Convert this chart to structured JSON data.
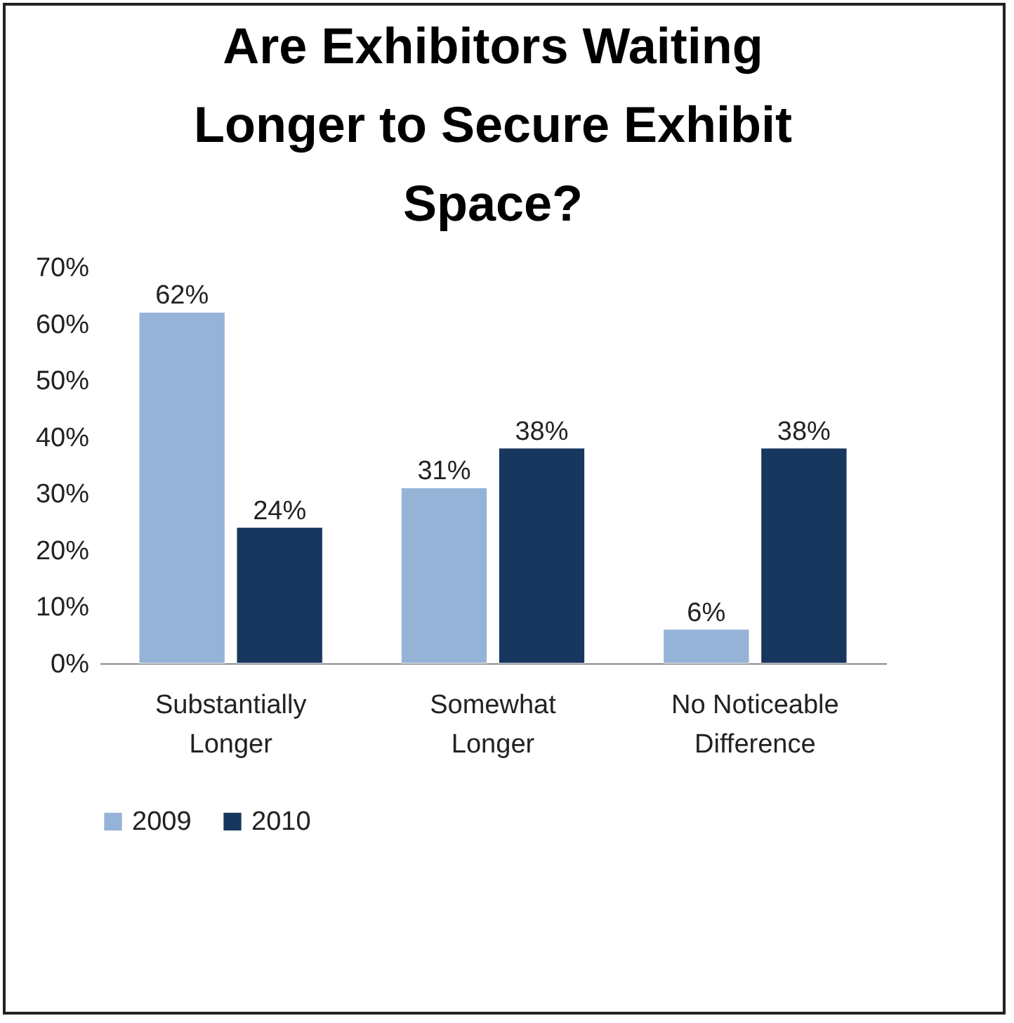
{
  "chart_data": {
    "type": "bar",
    "title": "Are Exhibitors Waiting Longer to Secure Exhibit Space?",
    "categories": [
      "Substantially Longer",
      "Somewhat Longer",
      "No Noticeable Difference"
    ],
    "series": [
      {
        "name": "2009",
        "color": "#95b3d7",
        "values": [
          62,
          31,
          6
        ],
        "value_labels": [
          "62%",
          "31%",
          "6%"
        ]
      },
      {
        "name": "2010",
        "color": "#17375e",
        "values": [
          24,
          38,
          38
        ],
        "value_labels": [
          "24%",
          "38%",
          "38%"
        ]
      }
    ],
    "ylim": [
      0,
      70
    ],
    "yticks": [
      {
        "value": 0,
        "label": "0%"
      },
      {
        "value": 10,
        "label": "10%"
      },
      {
        "value": 20,
        "label": "20%"
      },
      {
        "value": 30,
        "label": "30%"
      },
      {
        "value": 40,
        "label": "40%"
      },
      {
        "value": 50,
        "label": "50%"
      },
      {
        "value": 60,
        "label": "60%"
      },
      {
        "value": 70,
        "label": "70%"
      }
    ],
    "grid": false,
    "legend": "bottom"
  }
}
